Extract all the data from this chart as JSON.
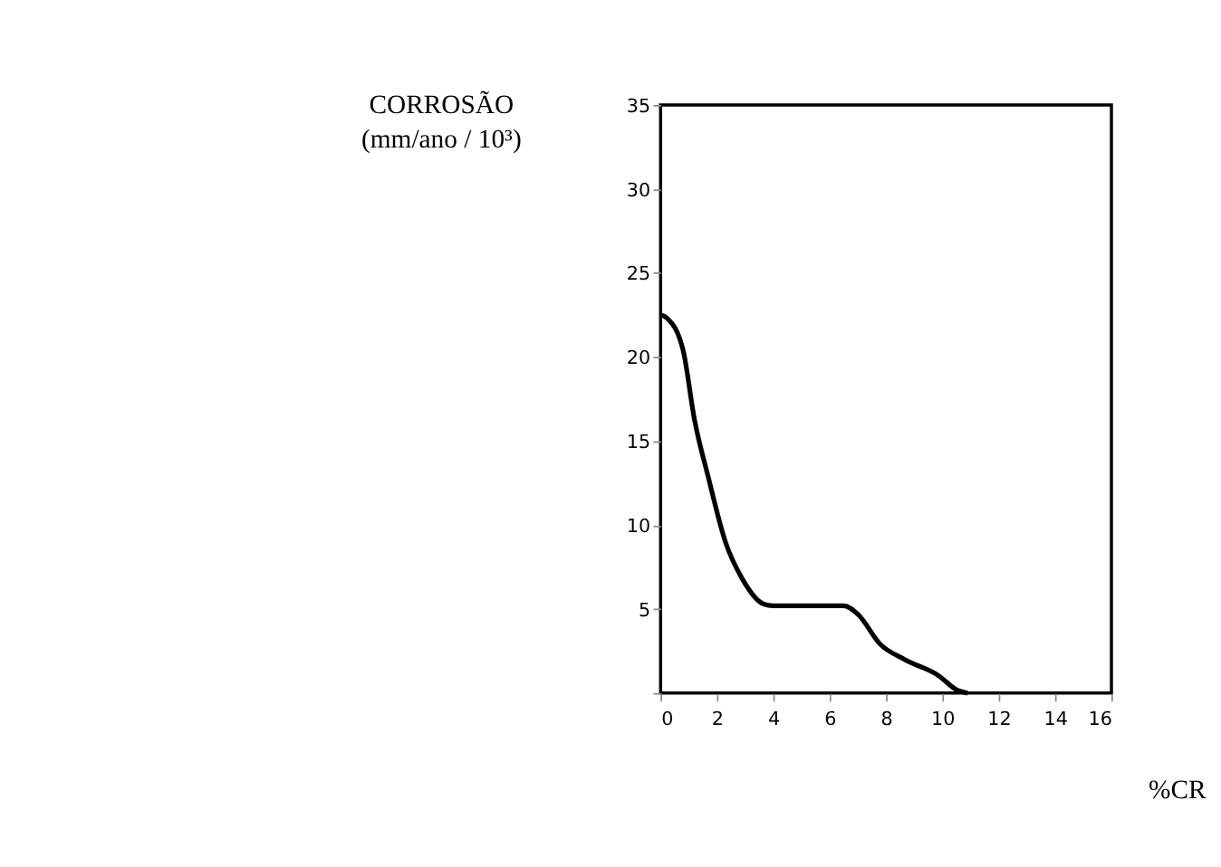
{
  "chart_data": {
    "type": "line",
    "ylabel": "CORROSÃO\n(mm/ano / 10³)",
    "xlabel": "%CR",
    "x": [
      0,
      0.24,
      0.8,
      1.2,
      1.7,
      2.3,
      2.9,
      3.66,
      4,
      5,
      6,
      6.5,
      7,
      7.8,
      8.66,
      9.9,
      10.5,
      10.9
    ],
    "series": [
      {
        "color": "#000000",
        "values": [
          22.5,
          22.3,
          20.4,
          16.3,
          12.8,
          9.0,
          6.8,
          5.3,
          5.2,
          5.2,
          5.2,
          5.2,
          4.7,
          2.9,
          2.0,
          1.0,
          0.2,
          0
        ]
      }
    ],
    "xlim": [
      0,
      16
    ],
    "xticks": [
      0,
      2,
      4,
      6,
      8,
      10,
      12,
      14,
      16
    ],
    "ylim": [
      0,
      35
    ],
    "yticks": [
      {
        "value": 0,
        "label": null
      },
      5,
      10,
      15,
      20,
      25,
      30,
      35
    ],
    "grid": false,
    "marker": "none",
    "line_style": "solid"
  }
}
